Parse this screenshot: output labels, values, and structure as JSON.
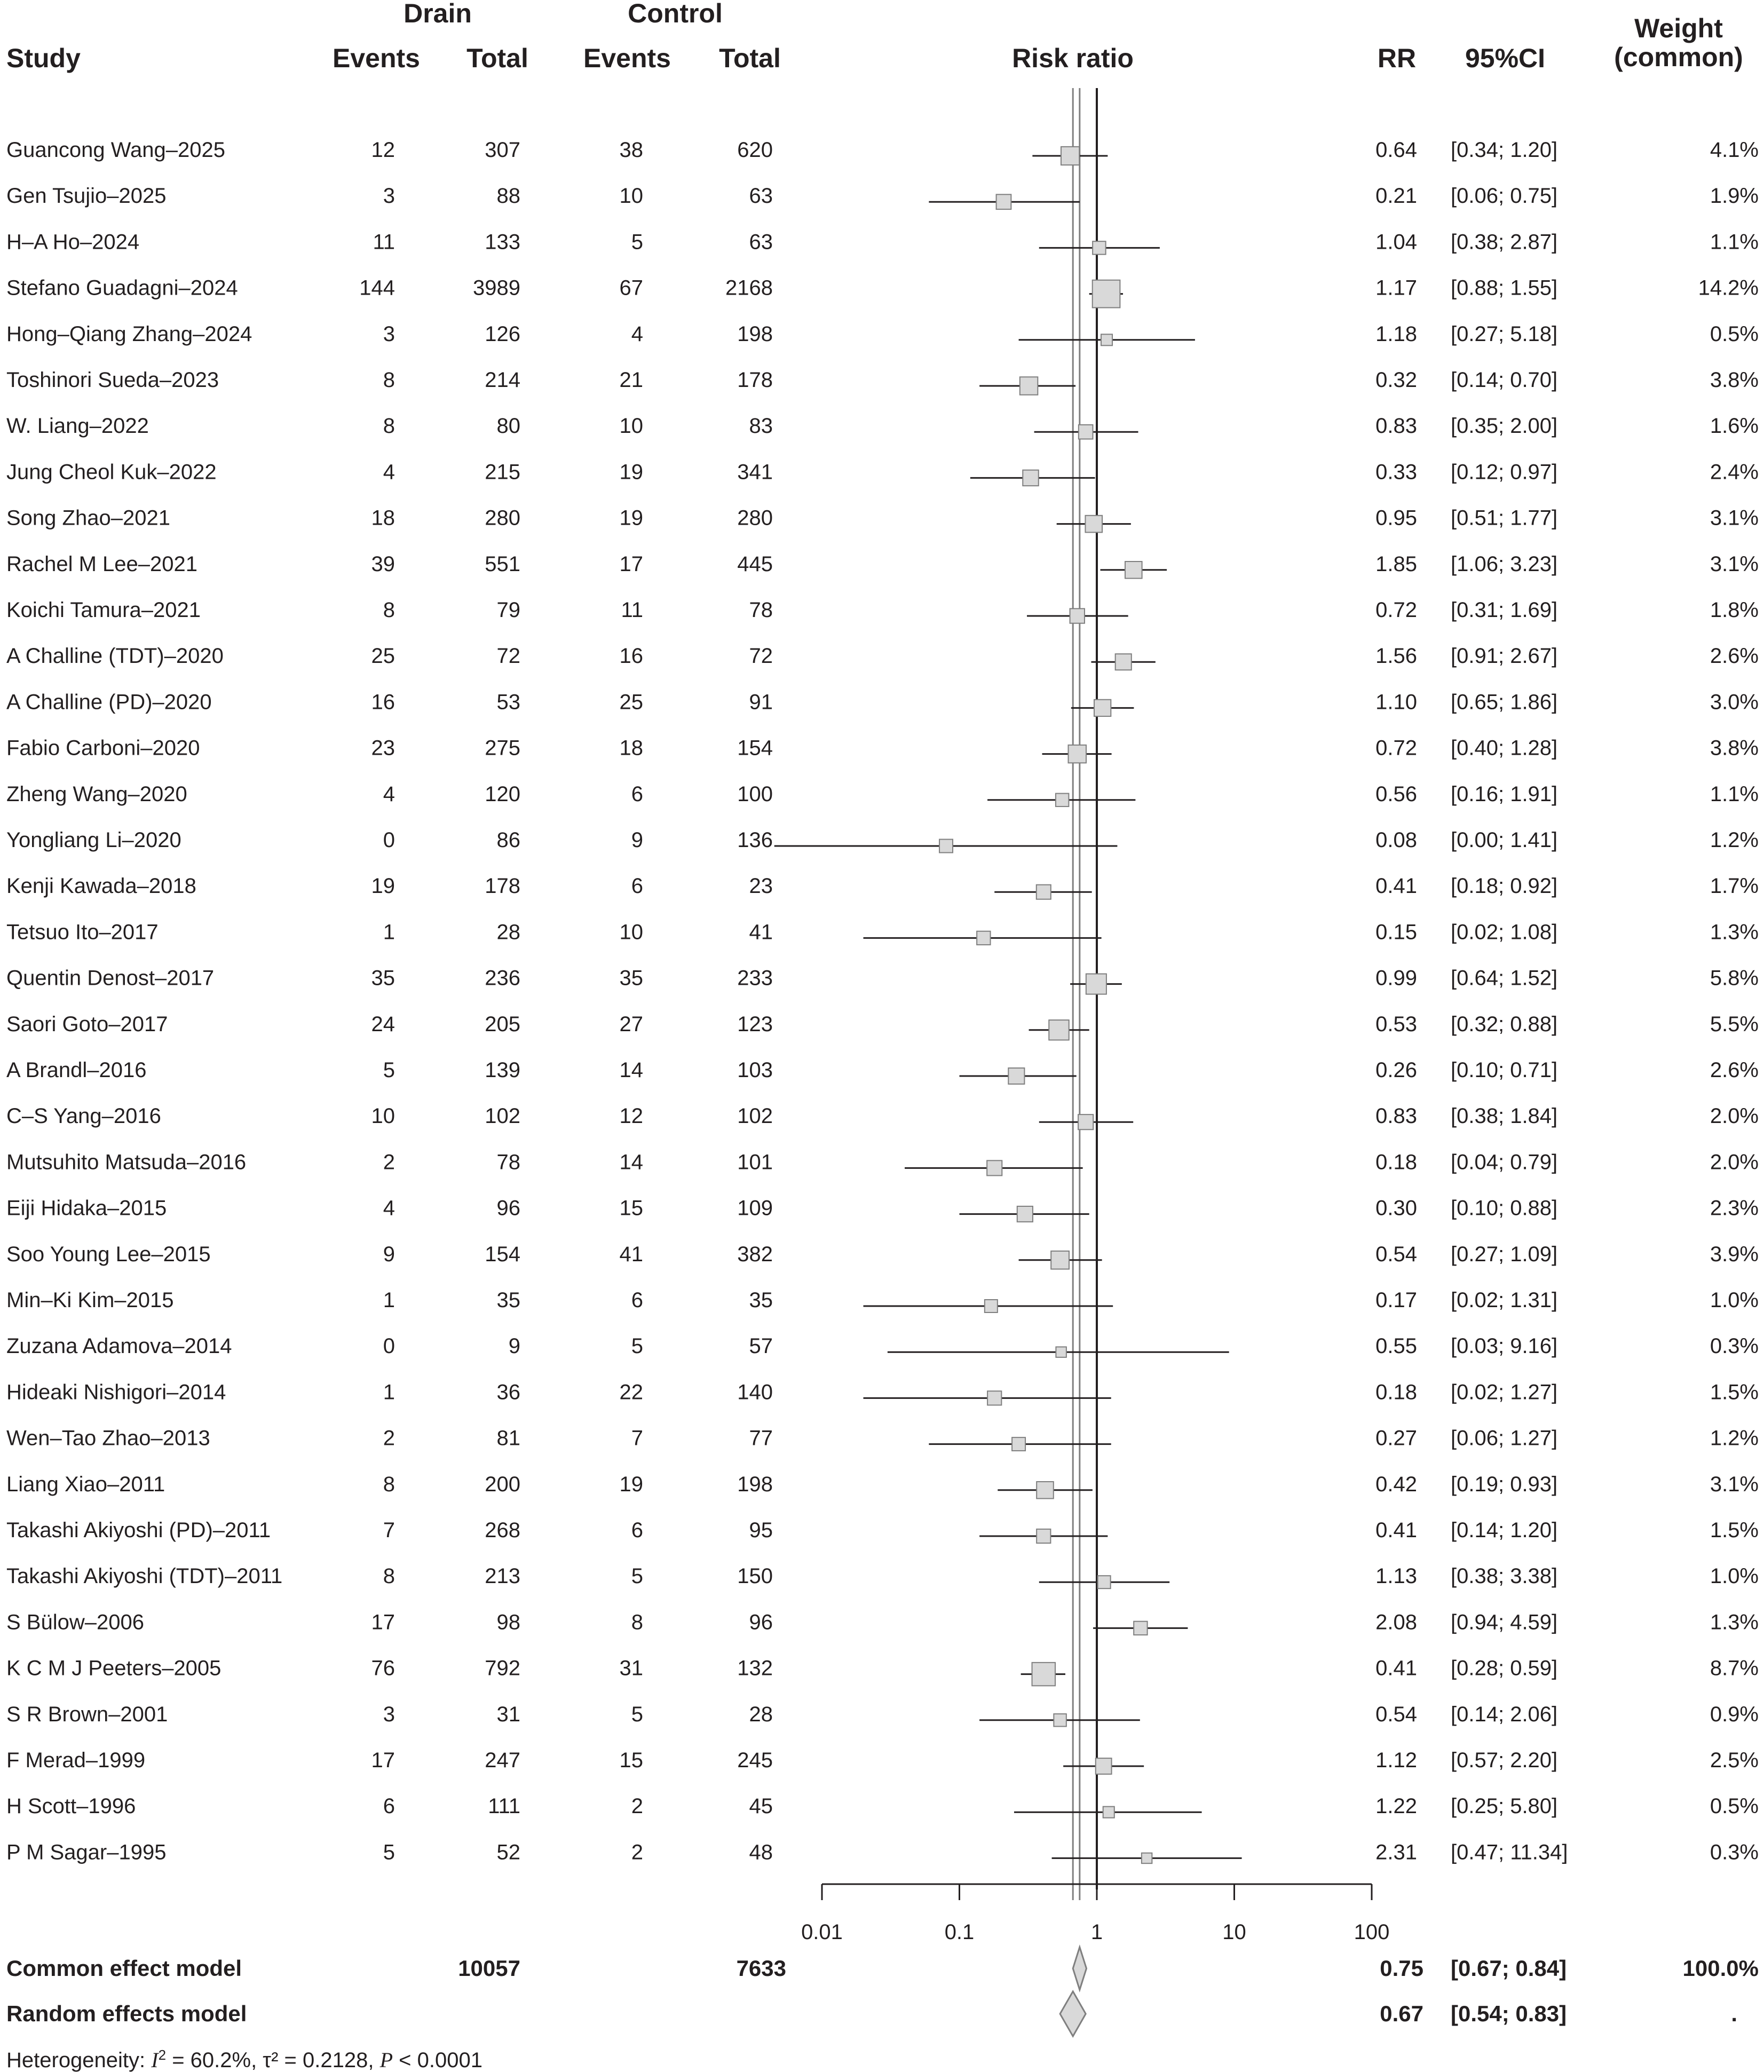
{
  "headers": {
    "drain": "Drain",
    "control": "Control",
    "study": "Study",
    "events": "Events",
    "total": "Total",
    "risk_ratio": "Risk ratio",
    "rr": "RR",
    "ci": "95%CI",
    "weight_line1": "Weight",
    "weight_line2": "(common)"
  },
  "colors": {
    "text": "#231f20",
    "box_fill": "#d9d9d9",
    "box_stroke": "#7f7f7f",
    "ref_line": "#7f7f7f"
  },
  "chart_data": {
    "type": "forest",
    "x_scale": "log",
    "xlim": [
      0.01,
      100
    ],
    "ticks": [
      0.01,
      0.1,
      1,
      10,
      100
    ],
    "tick_labels": [
      "0.01",
      "0.1",
      "1",
      "10",
      "100"
    ],
    "null_line": 1,
    "studies": [
      {
        "study": "Guancong Wang–2025",
        "drain_events": "12",
        "drain_total": "307",
        "control_events": "38",
        "control_total": "620",
        "rr": 0.64,
        "lo": 0.34,
        "hi": 1.2,
        "rr_text": "0.64",
        "ci_text": "[0.34; 1.20]",
        "weight": 4.1,
        "weight_text": "4.1%"
      },
      {
        "study": "Gen Tsujio–2025",
        "drain_events": "3",
        "drain_total": "88",
        "control_events": "10",
        "control_total": "63",
        "rr": 0.21,
        "lo": 0.06,
        "hi": 0.75,
        "rr_text": "0.21",
        "ci_text": "[0.06; 0.75]",
        "weight": 1.9,
        "weight_text": "1.9%"
      },
      {
        "study": "H–A Ho–2024",
        "drain_events": "11",
        "drain_total": "133",
        "control_events": "5",
        "control_total": "63",
        "rr": 1.04,
        "lo": 0.38,
        "hi": 2.87,
        "rr_text": "1.04",
        "ci_text": "[0.38; 2.87]",
        "weight": 1.1,
        "weight_text": "1.1%"
      },
      {
        "study": "Stefano Guadagni–2024",
        "drain_events": "144",
        "drain_total": "3989",
        "control_events": "67",
        "control_total": "2168",
        "rr": 1.17,
        "lo": 0.88,
        "hi": 1.55,
        "rr_text": "1.17",
        "ci_text": "[0.88; 1.55]",
        "weight": 14.2,
        "weight_text": "14.2%"
      },
      {
        "study": "Hong–Qiang Zhang–2024",
        "drain_events": "3",
        "drain_total": "126",
        "control_events": "4",
        "control_total": "198",
        "rr": 1.18,
        "lo": 0.27,
        "hi": 5.18,
        "rr_text": "1.18",
        "ci_text": "[0.27; 5.18]",
        "weight": 0.5,
        "weight_text": "0.5%"
      },
      {
        "study": "Toshinori Sueda–2023",
        "drain_events": "8",
        "drain_total": "214",
        "control_events": "21",
        "control_total": "178",
        "rr": 0.32,
        "lo": 0.14,
        "hi": 0.7,
        "rr_text": "0.32",
        "ci_text": "[0.14; 0.70]",
        "weight": 3.8,
        "weight_text": "3.8%"
      },
      {
        "study": "W. Liang–2022",
        "drain_events": "8",
        "drain_total": "80",
        "control_events": "10",
        "control_total": "83",
        "rr": 0.83,
        "lo": 0.35,
        "hi": 2.0,
        "rr_text": "0.83",
        "ci_text": "[0.35; 2.00]",
        "weight": 1.6,
        "weight_text": "1.6%"
      },
      {
        "study": "Jung Cheol Kuk–2022",
        "drain_events": "4",
        "drain_total": "215",
        "control_events": "19",
        "control_total": "341",
        "rr": 0.33,
        "lo": 0.12,
        "hi": 0.97,
        "rr_text": "0.33",
        "ci_text": "[0.12; 0.97]",
        "weight": 2.4,
        "weight_text": "2.4%"
      },
      {
        "study": "Song Zhao–2021",
        "drain_events": "18",
        "drain_total": "280",
        "control_events": "19",
        "control_total": "280",
        "rr": 0.95,
        "lo": 0.51,
        "hi": 1.77,
        "rr_text": "0.95",
        "ci_text": "[0.51; 1.77]",
        "weight": 3.1,
        "weight_text": "3.1%"
      },
      {
        "study": "Rachel M Lee–2021",
        "drain_events": "39",
        "drain_total": "551",
        "control_events": "17",
        "control_total": "445",
        "rr": 1.85,
        "lo": 1.06,
        "hi": 3.23,
        "rr_text": "1.85",
        "ci_text": "[1.06; 3.23]",
        "weight": 3.1,
        "weight_text": "3.1%"
      },
      {
        "study": "Koichi Tamura–2021",
        "drain_events": "8",
        "drain_total": "79",
        "control_events": "11",
        "control_total": "78",
        "rr": 0.72,
        "lo": 0.31,
        "hi": 1.69,
        "rr_text": "0.72",
        "ci_text": "[0.31; 1.69]",
        "weight": 1.8,
        "weight_text": "1.8%"
      },
      {
        "study": "A Challine (TDT)–2020",
        "drain_events": "25",
        "drain_total": "72",
        "control_events": "16",
        "control_total": "72",
        "rr": 1.56,
        "lo": 0.91,
        "hi": 2.67,
        "rr_text": "1.56",
        "ci_text": "[0.91; 2.67]",
        "weight": 2.6,
        "weight_text": "2.6%"
      },
      {
        "study": "A Challine (PD)–2020",
        "drain_events": "16",
        "drain_total": "53",
        "control_events": "25",
        "control_total": "91",
        "rr": 1.1,
        "lo": 0.65,
        "hi": 1.86,
        "rr_text": "1.10",
        "ci_text": "[0.65; 1.86]",
        "weight": 3.0,
        "weight_text": "3.0%"
      },
      {
        "study": "Fabio Carboni–2020",
        "drain_events": "23",
        "drain_total": "275",
        "control_events": "18",
        "control_total": "154",
        "rr": 0.72,
        "lo": 0.4,
        "hi": 1.28,
        "rr_text": "0.72",
        "ci_text": "[0.40; 1.28]",
        "weight": 3.8,
        "weight_text": "3.8%"
      },
      {
        "study": "Zheng Wang–2020",
        "drain_events": "4",
        "drain_total": "120",
        "control_events": "6",
        "control_total": "100",
        "rr": 0.56,
        "lo": 0.16,
        "hi": 1.91,
        "rr_text": "0.56",
        "ci_text": "[0.16; 1.91]",
        "weight": 1.1,
        "weight_text": "1.1%"
      },
      {
        "study": "Yongliang Li–2020",
        "drain_events": "0",
        "drain_total": "86",
        "control_events": "9",
        "control_total": "136",
        "rr": 0.08,
        "lo": 0.0045,
        "hi": 1.41,
        "rr_text": "0.08",
        "ci_text": "[0.00; 1.41]",
        "weight": 1.2,
        "weight_text": "1.2%"
      },
      {
        "study": "Kenji Kawada–2018",
        "drain_events": "19",
        "drain_total": "178",
        "control_events": "6",
        "control_total": "23",
        "rr": 0.41,
        "lo": 0.18,
        "hi": 0.92,
        "rr_text": "0.41",
        "ci_text": "[0.18; 0.92]",
        "weight": 1.7,
        "weight_text": "1.7%"
      },
      {
        "study": "Tetsuo Ito–2017",
        "drain_events": "1",
        "drain_total": "28",
        "control_events": "10",
        "control_total": "41",
        "rr": 0.15,
        "lo": 0.02,
        "hi": 1.08,
        "rr_text": "0.15",
        "ci_text": "[0.02; 1.08]",
        "weight": 1.3,
        "weight_text": "1.3%"
      },
      {
        "study": "Quentin Denost–2017",
        "drain_events": "35",
        "drain_total": "236",
        "control_events": "35",
        "control_total": "233",
        "rr": 0.99,
        "lo": 0.64,
        "hi": 1.52,
        "rr_text": "0.99",
        "ci_text": "[0.64; 1.52]",
        "weight": 5.8,
        "weight_text": "5.8%"
      },
      {
        "study": "Saori Goto–2017",
        "drain_events": "24",
        "drain_total": "205",
        "control_events": "27",
        "control_total": "123",
        "rr": 0.53,
        "lo": 0.32,
        "hi": 0.88,
        "rr_text": "0.53",
        "ci_text": "[0.32; 0.88]",
        "weight": 5.5,
        "weight_text": "5.5%"
      },
      {
        "study": "A Brandl–2016",
        "drain_events": "5",
        "drain_total": "139",
        "control_events": "14",
        "control_total": "103",
        "rr": 0.26,
        "lo": 0.1,
        "hi": 0.71,
        "rr_text": "0.26",
        "ci_text": "[0.10; 0.71]",
        "weight": 2.6,
        "weight_text": "2.6%"
      },
      {
        "study": "C–S Yang–2016",
        "drain_events": "10",
        "drain_total": "102",
        "control_events": "12",
        "control_total": "102",
        "rr": 0.83,
        "lo": 0.38,
        "hi": 1.84,
        "rr_text": "0.83",
        "ci_text": "[0.38; 1.84]",
        "weight": 2.0,
        "weight_text": "2.0%"
      },
      {
        "study": "Mutsuhito Matsuda–2016",
        "drain_events": "2",
        "drain_total": "78",
        "control_events": "14",
        "control_total": "101",
        "rr": 0.18,
        "lo": 0.04,
        "hi": 0.79,
        "rr_text": "0.18",
        "ci_text": "[0.04; 0.79]",
        "weight": 2.0,
        "weight_text": "2.0%"
      },
      {
        "study": "Eiji Hidaka–2015",
        "drain_events": "4",
        "drain_total": "96",
        "control_events": "15",
        "control_total": "109",
        "rr": 0.3,
        "lo": 0.1,
        "hi": 0.88,
        "rr_text": "0.30",
        "ci_text": "[0.10; 0.88]",
        "weight": 2.3,
        "weight_text": "2.3%"
      },
      {
        "study": "Soo Young Lee–2015",
        "drain_events": "9",
        "drain_total": "154",
        "control_events": "41",
        "control_total": "382",
        "rr": 0.54,
        "lo": 0.27,
        "hi": 1.09,
        "rr_text": "0.54",
        "ci_text": "[0.27; 1.09]",
        "weight": 3.9,
        "weight_text": "3.9%"
      },
      {
        "study": "Min–Ki Kim–2015",
        "drain_events": "1",
        "drain_total": "35",
        "control_events": "6",
        "control_total": "35",
        "rr": 0.17,
        "lo": 0.02,
        "hi": 1.31,
        "rr_text": "0.17",
        "ci_text": "[0.02; 1.31]",
        "weight": 1.0,
        "weight_text": "1.0%"
      },
      {
        "study": "Zuzana Adamova–2014",
        "drain_events": "0",
        "drain_total": "9",
        "control_events": "5",
        "control_total": "57",
        "rr": 0.55,
        "lo": 0.03,
        "hi": 9.16,
        "rr_text": "0.55",
        "ci_text": "[0.03; 9.16]",
        "weight": 0.3,
        "weight_text": "0.3%"
      },
      {
        "study": "Hideaki Nishigori–2014",
        "drain_events": "1",
        "drain_total": "36",
        "control_events": "22",
        "control_total": "140",
        "rr": 0.18,
        "lo": 0.02,
        "hi": 1.27,
        "rr_text": "0.18",
        "ci_text": "[0.02; 1.27]",
        "weight": 1.5,
        "weight_text": "1.5%"
      },
      {
        "study": "Wen–Tao Zhao–2013",
        "drain_events": "2",
        "drain_total": "81",
        "control_events": "7",
        "control_total": "77",
        "rr": 0.27,
        "lo": 0.06,
        "hi": 1.27,
        "rr_text": "0.27",
        "ci_text": "[0.06; 1.27]",
        "weight": 1.2,
        "weight_text": "1.2%"
      },
      {
        "study": "Liang Xiao–2011",
        "drain_events": "8",
        "drain_total": "200",
        "control_events": "19",
        "control_total": "198",
        "rr": 0.42,
        "lo": 0.19,
        "hi": 0.93,
        "rr_text": "0.42",
        "ci_text": "[0.19; 0.93]",
        "weight": 3.1,
        "weight_text": "3.1%"
      },
      {
        "study": "Takashi Akiyoshi (PD)–2011",
        "drain_events": "7",
        "drain_total": "268",
        "control_events": "6",
        "control_total": "95",
        "rr": 0.41,
        "lo": 0.14,
        "hi": 1.2,
        "rr_text": "0.41",
        "ci_text": "[0.14; 1.20]",
        "weight": 1.5,
        "weight_text": "1.5%"
      },
      {
        "study": "Takashi Akiyoshi (TDT)–2011",
        "drain_events": "8",
        "drain_total": "213",
        "control_events": "5",
        "control_total": "150",
        "rr": 1.13,
        "lo": 0.38,
        "hi": 3.38,
        "rr_text": "1.13",
        "ci_text": "[0.38; 3.38]",
        "weight": 1.0,
        "weight_text": "1.0%"
      },
      {
        "study": "S Bülow–2006",
        "drain_events": "17",
        "drain_total": "98",
        "control_events": "8",
        "control_total": "96",
        "rr": 2.08,
        "lo": 0.94,
        "hi": 4.59,
        "rr_text": "2.08",
        "ci_text": "[0.94; 4.59]",
        "weight": 1.3,
        "weight_text": "1.3%"
      },
      {
        "study": "K C M J Peeters–2005",
        "drain_events": "76",
        "drain_total": "792",
        "control_events": "31",
        "control_total": "132",
        "rr": 0.41,
        "lo": 0.28,
        "hi": 0.59,
        "rr_text": "0.41",
        "ci_text": "[0.28; 0.59]",
        "weight": 8.7,
        "weight_text": "8.7%"
      },
      {
        "study": "S R Brown–2001",
        "drain_events": "3",
        "drain_total": "31",
        "control_events": "5",
        "control_total": "28",
        "rr": 0.54,
        "lo": 0.14,
        "hi": 2.06,
        "rr_text": "0.54",
        "ci_text": "[0.14; 2.06]",
        "weight": 0.9,
        "weight_text": "0.9%"
      },
      {
        "study": "F Merad–1999",
        "drain_events": "17",
        "drain_total": "247",
        "control_events": "15",
        "control_total": "245",
        "rr": 1.12,
        "lo": 0.57,
        "hi": 2.2,
        "rr_text": "1.12",
        "ci_text": "[0.57; 2.20]",
        "weight": 2.5,
        "weight_text": "2.5%"
      },
      {
        "study": "H Scott–1996",
        "drain_events": "6",
        "drain_total": "111",
        "control_events": "2",
        "control_total": "45",
        "rr": 1.22,
        "lo": 0.25,
        "hi": 5.8,
        "rr_text": "1.22",
        "ci_text": "[0.25; 5.80]",
        "weight": 0.5,
        "weight_text": "0.5%"
      },
      {
        "study": "P M Sagar–1995",
        "drain_events": "5",
        "drain_total": "52",
        "control_events": "2",
        "control_total": "48",
        "rr": 2.31,
        "lo": 0.47,
        "hi": 11.34,
        "rr_text": "2.31",
        "ci_text": "[0.47; 11.34]",
        "weight": 0.3,
        "weight_text": "0.3%"
      }
    ],
    "common": {
      "label": "Common effect model",
      "drain_total": "10057",
      "control_total": "7633",
      "rr": 0.75,
      "lo": 0.67,
      "hi": 0.84,
      "rr_text": "0.75",
      "ci_text": "[0.67; 0.84]",
      "weight_text": "100.0%"
    },
    "random": {
      "label": "Random effects model",
      "rr": 0.67,
      "lo": 0.54,
      "hi": 0.83,
      "rr_text": "0.67",
      "ci_text": "[0.54; 0.83]",
      "weight_text": "."
    },
    "heterogeneity": {
      "prefix": "Heterogeneity: ",
      "i2_symbol": "I",
      "i2_value": " = 60.2%, τ² = 0.2128, ",
      "p_symbol": "P",
      "p_value": " < 0.0001"
    }
  }
}
